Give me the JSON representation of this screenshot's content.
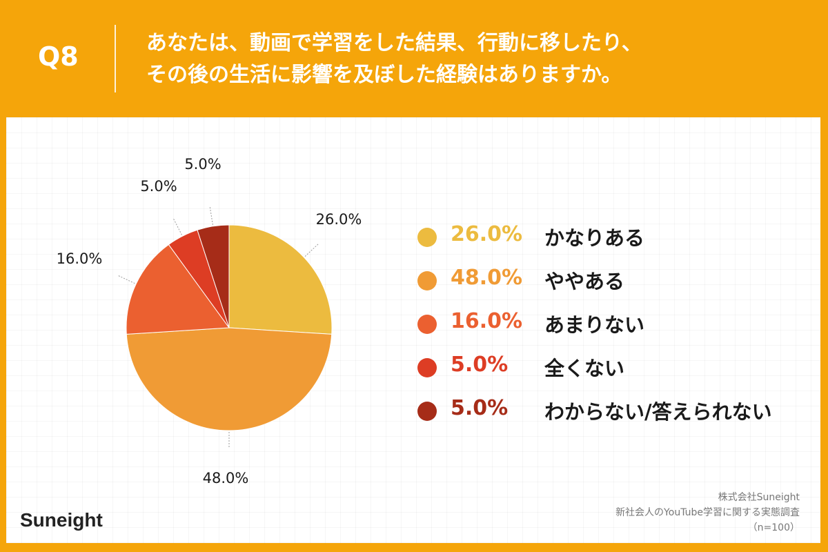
{
  "header": {
    "question_number": "Q8",
    "question_line1": "あなたは、動画で学習をした結果、行動に移したり、",
    "question_line2": "その後の生活に影響を及ぼした経験はありますか。"
  },
  "chart_data": {
    "type": "pie",
    "start_angle": "12 o'clock",
    "direction": "clockwise",
    "slices": [
      {
        "label": "かなりある",
        "value": 26.0,
        "value_text": "26.0%",
        "color": "#ecbb3f"
      },
      {
        "label": "ややある",
        "value": 48.0,
        "value_text": "48.0%",
        "color": "#f09b35"
      },
      {
        "label": "あまりない",
        "value": 16.0,
        "value_text": "16.0%",
        "color": "#eb6030"
      },
      {
        "label": "全くない",
        "value": 5.0,
        "value_text": "5.0%",
        "color": "#dd3d24"
      },
      {
        "label": "わからない/答えられない",
        "value": 5.0,
        "value_text": "5.0%",
        "color": "#a62c18"
      }
    ],
    "legend_placement": "right"
  },
  "footer": {
    "brand": "Suneight",
    "source_company": "株式会社Suneight",
    "source_survey": "新社会人のYouTube学習に関する実態調査",
    "sample_size": "（n=100）"
  }
}
